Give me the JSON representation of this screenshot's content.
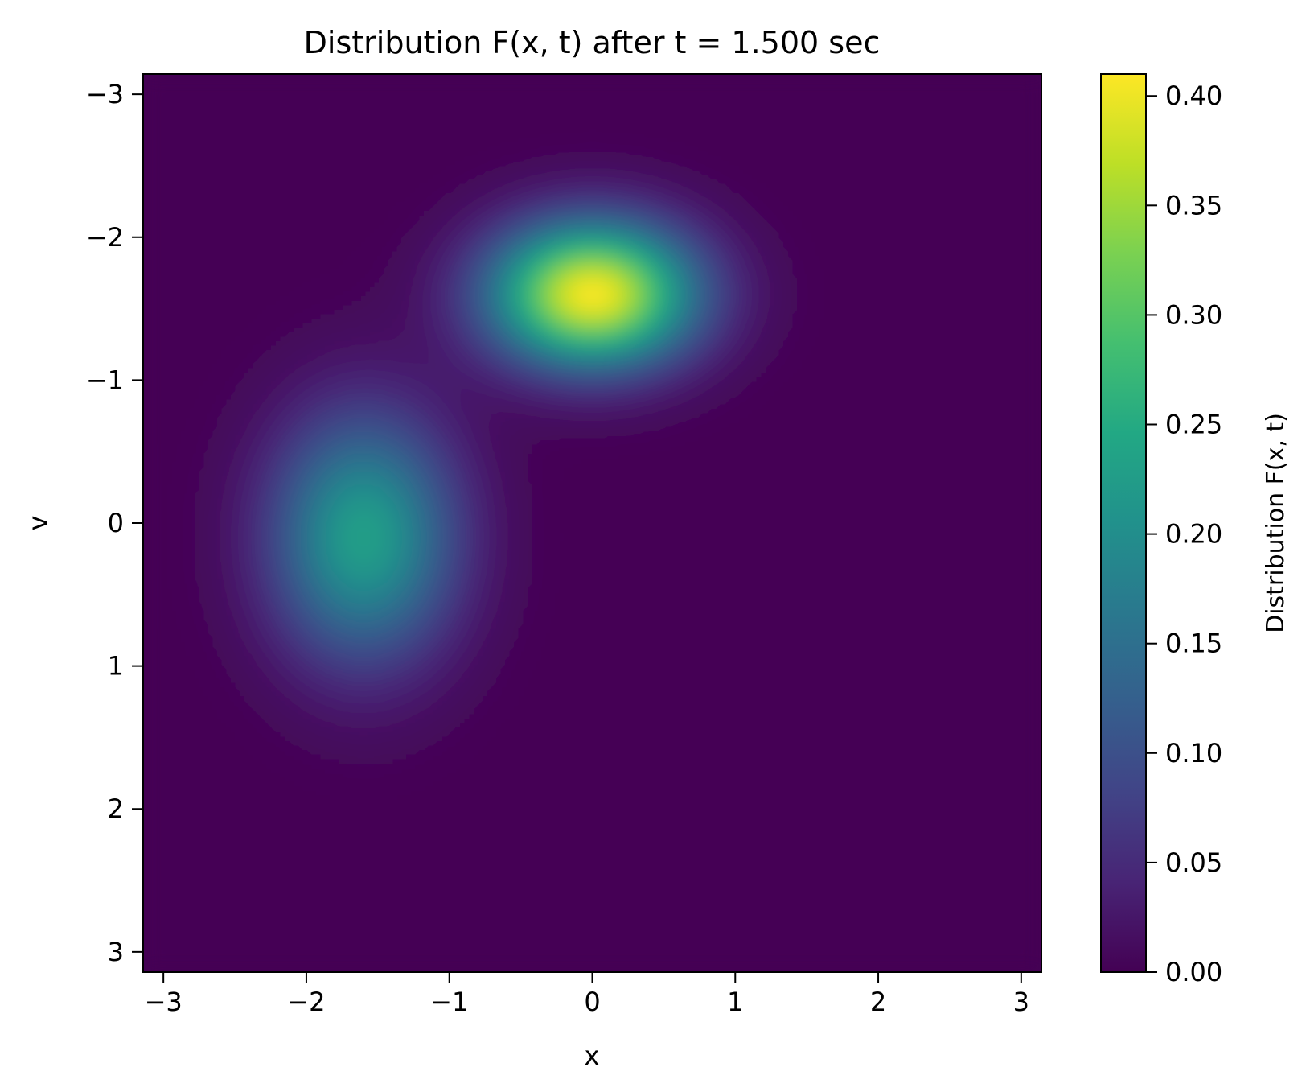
{
  "chart_data": {
    "type": "heatmap",
    "title": "Distribution F(x, t) after t = 1.500 sec",
    "xlabel": "x",
    "ylabel": "v",
    "xlim": [
      -3.1416,
      3.1416
    ],
    "ylim": [
      3.1416,
      -3.1416
    ],
    "y_inverted": true,
    "grid": false,
    "x_ticks": [
      -3,
      -2,
      -1,
      0,
      1,
      2,
      3
    ],
    "x_tick_labels": [
      "−3",
      "−2",
      "−1",
      "0",
      "1",
      "2",
      "3"
    ],
    "y_ticks": [
      -3,
      -2,
      -1,
      0,
      1,
      2,
      3
    ],
    "y_tick_labels": [
      "−3",
      "−2",
      "−1",
      "0",
      "1",
      "2",
      "3"
    ],
    "colormap": "viridis",
    "colorbar": {
      "label": "Distribution F(x, t)",
      "vmin": 0.0,
      "vmax": 0.41,
      "ticks": [
        0.0,
        0.05,
        0.1,
        0.15,
        0.2,
        0.25,
        0.3,
        0.35,
        0.4
      ],
      "tick_labels": [
        "0.00",
        "0.05",
        "0.10",
        "0.15",
        "0.20",
        "0.25",
        "0.30",
        "0.35",
        "0.40"
      ]
    },
    "peaks": [
      {
        "x": 0.0,
        "v": -1.6,
        "value": 0.41,
        "sigma_x": 0.5,
        "sigma_v": 0.35
      },
      {
        "x": -1.6,
        "v": 0.1,
        "value": 0.23,
        "sigma_x": 0.45,
        "sigma_v": 0.6
      }
    ]
  }
}
